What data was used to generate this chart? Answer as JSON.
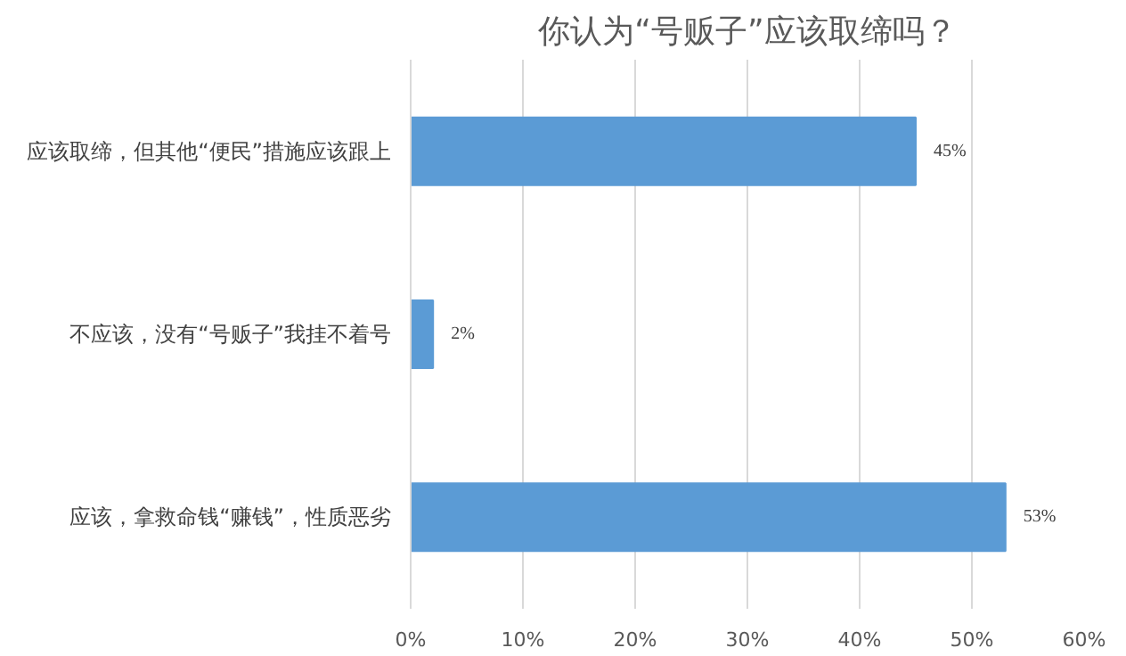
{
  "chart_data": {
    "type": "bar",
    "orientation": "horizontal",
    "title": "你认为“号贩子”应该取缔吗？",
    "categories": [
      "应该取缔，但其他“便民”措施应该跟上",
      "不应该，没有“号贩子”我挂不着号",
      "应该，拿救命钱“赚钱”，性质恶劣"
    ],
    "values": [
      45,
      2,
      53
    ],
    "color": "#5b9bd5",
    "value_labels": [
      "45%",
      "2%",
      "53%"
    ],
    "xlim": [
      0,
      60
    ],
    "xticks": [
      {
        "value": 0,
        "label": "0%"
      },
      {
        "value": 10,
        "label": "10%"
      },
      {
        "value": 20,
        "label": "20%"
      },
      {
        "value": 30,
        "label": "30%"
      },
      {
        "value": 40,
        "label": "40%"
      },
      {
        "value": 50,
        "label": "50%"
      },
      {
        "value": 60,
        "label": "60%"
      }
    ],
    "grid": "x"
  }
}
